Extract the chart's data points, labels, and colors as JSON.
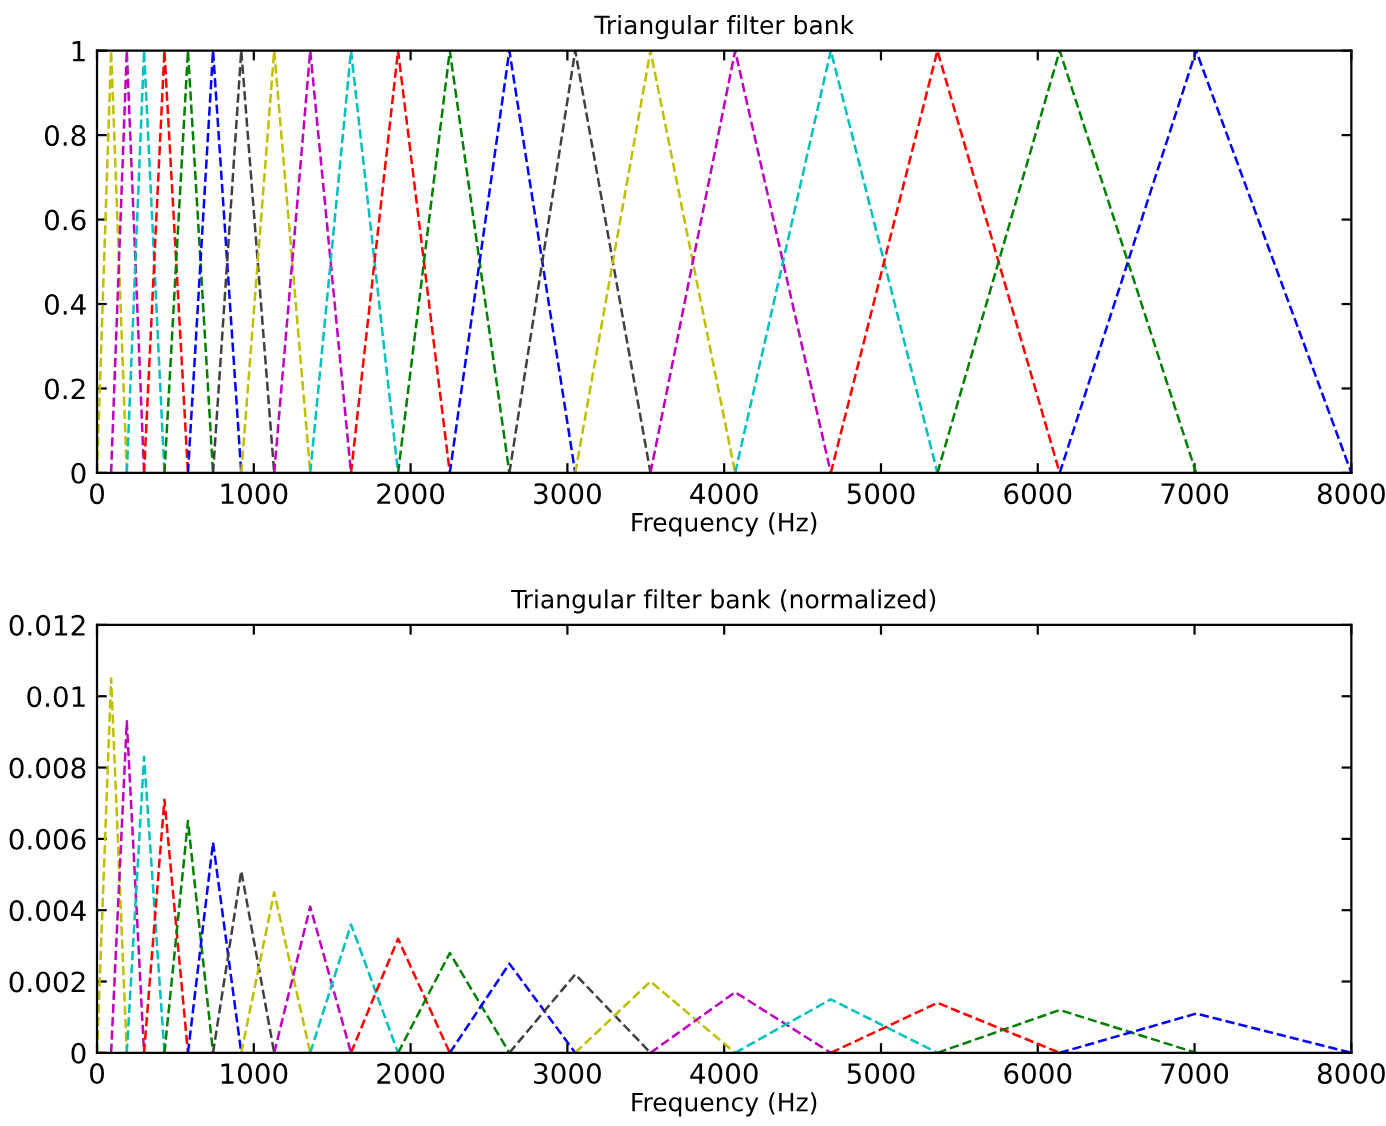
{
  "chart_data": [
    {
      "type": "line",
      "title": "Triangular filter bank",
      "xlabel": "Frequency (Hz)",
      "xlim": [
        0,
        8000
      ],
      "xticks": [
        0,
        1000,
        2000,
        3000,
        4000,
        5000,
        6000,
        7000,
        8000
      ],
      "ylim": [
        0,
        1
      ],
      "yticks": [
        0,
        0.2,
        0.4,
        0.6,
        0.8,
        1
      ],
      "grid": false,
      "line_style": "dashed",
      "marker": "none",
      "series": [
        {
          "color": "#bfbf00",
          "x": [
            0,
            90,
            190
          ],
          "values": [
            0,
            1,
            0
          ]
        },
        {
          "color": "#bf00bf",
          "x": [
            90,
            190,
            300
          ],
          "values": [
            0,
            1,
            0
          ]
        },
        {
          "color": "#00bfbf",
          "x": [
            190,
            300,
            430
          ],
          "values": [
            0,
            1,
            0
          ]
        },
        {
          "color": "#ff0000",
          "x": [
            300,
            430,
            580
          ],
          "values": [
            0,
            1,
            0
          ]
        },
        {
          "color": "#008000",
          "x": [
            430,
            580,
            740
          ],
          "values": [
            0,
            1,
            0
          ]
        },
        {
          "color": "#0000ff",
          "x": [
            580,
            740,
            920
          ],
          "values": [
            0,
            1,
            0
          ]
        },
        {
          "color": "#404040",
          "x": [
            740,
            920,
            1130
          ],
          "values": [
            0,
            1,
            0
          ]
        },
        {
          "color": "#bfbf00",
          "x": [
            920,
            1130,
            1360
          ],
          "values": [
            0,
            1,
            0
          ]
        },
        {
          "color": "#bf00bf",
          "x": [
            1130,
            1360,
            1620
          ],
          "values": [
            0,
            1,
            0
          ]
        },
        {
          "color": "#00bfbf",
          "x": [
            1360,
            1620,
            1920
          ],
          "values": [
            0,
            1,
            0
          ]
        },
        {
          "color": "#ff0000",
          "x": [
            1620,
            1920,
            2250
          ],
          "values": [
            0,
            1,
            0
          ]
        },
        {
          "color": "#008000",
          "x": [
            1920,
            2250,
            2630
          ],
          "values": [
            0,
            1,
            0
          ]
        },
        {
          "color": "#0000ff",
          "x": [
            2250,
            2630,
            3050
          ],
          "values": [
            0,
            1,
            0
          ]
        },
        {
          "color": "#404040",
          "x": [
            2630,
            3050,
            3530
          ],
          "values": [
            0,
            1,
            0
          ]
        },
        {
          "color": "#bfbf00",
          "x": [
            3050,
            3530,
            4070
          ],
          "values": [
            0,
            1,
            0
          ]
        },
        {
          "color": "#bf00bf",
          "x": [
            3530,
            4070,
            4680
          ],
          "values": [
            0,
            1,
            0
          ]
        },
        {
          "color": "#00bfbf",
          "x": [
            4070,
            4680,
            5360
          ],
          "values": [
            0,
            1,
            0
          ]
        },
        {
          "color": "#ff0000",
          "x": [
            4680,
            5360,
            6140
          ],
          "values": [
            0,
            1,
            0
          ]
        },
        {
          "color": "#008000",
          "x": [
            5360,
            6140,
            7010
          ],
          "values": [
            0,
            1,
            0
          ]
        },
        {
          "color": "#0000ff",
          "x": [
            6140,
            7010,
            8000
          ],
          "values": [
            0,
            1,
            0
          ]
        }
      ]
    },
    {
      "type": "line",
      "title": "Triangular filter bank (normalized)",
      "xlabel": "Frequency (Hz)",
      "xlim": [
        0,
        8000
      ],
      "xticks": [
        0,
        1000,
        2000,
        3000,
        4000,
        5000,
        6000,
        7000,
        8000
      ],
      "ylim": [
        0,
        0.012
      ],
      "yticks": [
        0,
        0.002,
        0.004,
        0.006,
        0.008,
        0.01,
        0.012
      ],
      "grid": false,
      "line_style": "dashed",
      "marker": "none",
      "series": [
        {
          "color": "#bfbf00",
          "x": [
            0,
            90,
            190
          ],
          "values": [
            0,
            0.0105,
            0
          ]
        },
        {
          "color": "#bf00bf",
          "x": [
            90,
            190,
            300
          ],
          "values": [
            0,
            0.0093,
            0
          ]
        },
        {
          "color": "#00bfbf",
          "x": [
            190,
            300,
            430
          ],
          "values": [
            0,
            0.0083,
            0
          ]
        },
        {
          "color": "#ff0000",
          "x": [
            300,
            430,
            580
          ],
          "values": [
            0,
            0.0071,
            0
          ]
        },
        {
          "color": "#008000",
          "x": [
            430,
            580,
            740
          ],
          "values": [
            0,
            0.0065,
            0
          ]
        },
        {
          "color": "#0000ff",
          "x": [
            580,
            740,
            920
          ],
          "values": [
            0,
            0.0059,
            0
          ]
        },
        {
          "color": "#404040",
          "x": [
            740,
            920,
            1130
          ],
          "values": [
            0,
            0.0051,
            0
          ]
        },
        {
          "color": "#bfbf00",
          "x": [
            920,
            1130,
            1360
          ],
          "values": [
            0,
            0.0045,
            0
          ]
        },
        {
          "color": "#bf00bf",
          "x": [
            1130,
            1360,
            1620
          ],
          "values": [
            0,
            0.0041,
            0
          ]
        },
        {
          "color": "#00bfbf",
          "x": [
            1360,
            1620,
            1920
          ],
          "values": [
            0,
            0.0036,
            0
          ]
        },
        {
          "color": "#ff0000",
          "x": [
            1620,
            1920,
            2250
          ],
          "values": [
            0,
            0.0032,
            0
          ]
        },
        {
          "color": "#008000",
          "x": [
            1920,
            2250,
            2630
          ],
          "values": [
            0,
            0.0028,
            0
          ]
        },
        {
          "color": "#0000ff",
          "x": [
            2250,
            2630,
            3050
          ],
          "values": [
            0,
            0.0025,
            0
          ]
        },
        {
          "color": "#404040",
          "x": [
            2630,
            3050,
            3530
          ],
          "values": [
            0,
            0.0022,
            0
          ]
        },
        {
          "color": "#bfbf00",
          "x": [
            3050,
            3530,
            4070
          ],
          "values": [
            0,
            0.002,
            0
          ]
        },
        {
          "color": "#bf00bf",
          "x": [
            3530,
            4070,
            4680
          ],
          "values": [
            0,
            0.0017,
            0
          ]
        },
        {
          "color": "#00bfbf",
          "x": [
            4070,
            4680,
            5360
          ],
          "values": [
            0,
            0.0015,
            0
          ]
        },
        {
          "color": "#ff0000",
          "x": [
            4680,
            5360,
            6140
          ],
          "values": [
            0,
            0.0014,
            0
          ]
        },
        {
          "color": "#008000",
          "x": [
            5360,
            6140,
            7010
          ],
          "values": [
            0,
            0.0012,
            0
          ]
        },
        {
          "color": "#0000ff",
          "x": [
            6140,
            7010,
            8000
          ],
          "values": [
            0,
            0.0011,
            0
          ]
        }
      ]
    }
  ]
}
